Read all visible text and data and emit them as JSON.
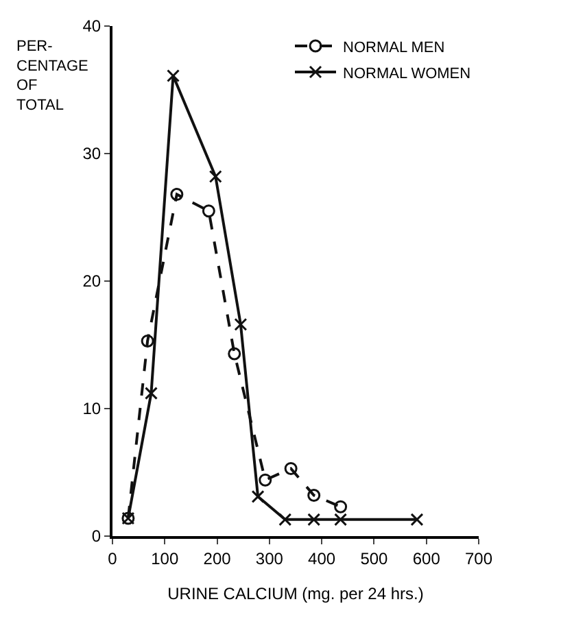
{
  "chart_data": {
    "type": "line",
    "ylabel": "PER-\nCENTAGE\nOF\nTOTAL",
    "xlabel": "URINE CALCIUM (mg. per 24 hrs.)",
    "series": [
      {
        "name": "NORMAL MEN",
        "color": "#111111",
        "marker": "circle",
        "line_style": "dashed",
        "x": [
          30,
          67,
          123,
          184,
          233,
          292,
          341,
          385,
          436
        ],
        "values": [
          1.4,
          15.3,
          26.8,
          25.5,
          14.3,
          4.4,
          5.3,
          3.2,
          2.3
        ]
      },
      {
        "name": "NORMAL WOMEN",
        "color": "#111111",
        "marker": "cross",
        "line_style": "solid",
        "x": [
          30,
          74,
          116,
          197,
          245,
          278,
          330,
          385,
          436,
          582
        ],
        "values": [
          1.4,
          11.2,
          36.1,
          28.2,
          16.6,
          3.1,
          1.3,
          1.3,
          1.3,
          1.3
        ]
      }
    ],
    "xlim": [
      0,
      700
    ],
    "xticks": [
      0,
      100,
      200,
      300,
      400,
      500,
      600,
      700
    ],
    "ylim": [
      0,
      40
    ],
    "yticks": [
      0,
      10,
      20,
      30,
      40
    ],
    "legend": "top right"
  }
}
